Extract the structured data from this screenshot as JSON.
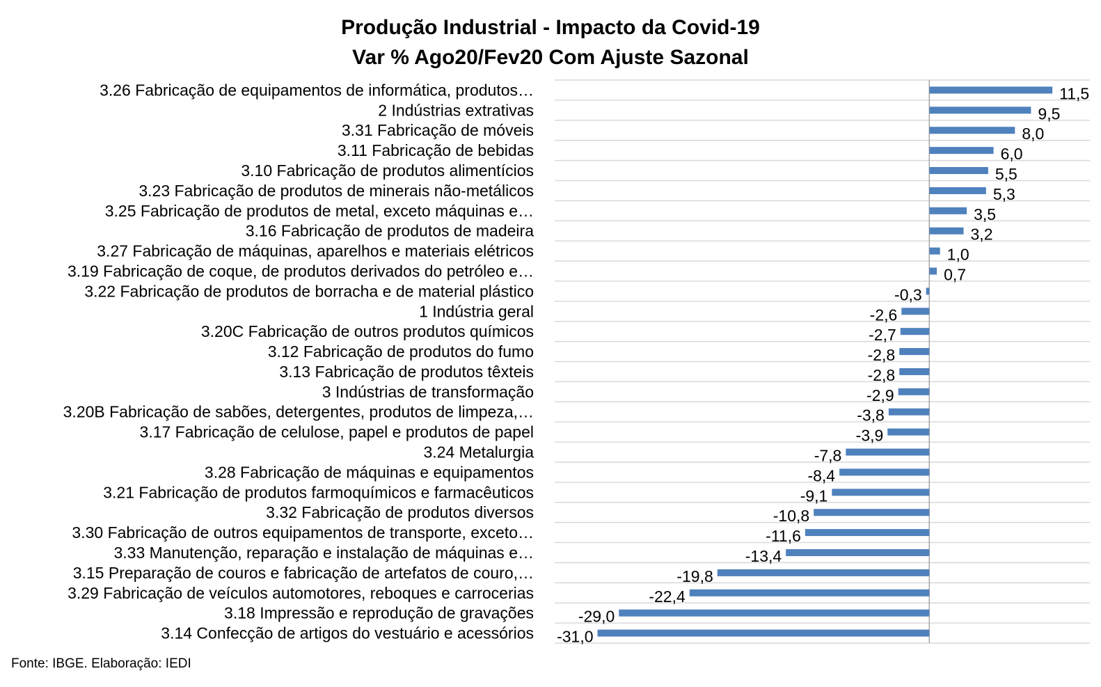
{
  "chart_data": {
    "type": "bar",
    "orientation": "horizontal",
    "title": "Produção Industrial - Impacto da Covid-19",
    "subtitle": "Var % Ago20/Fev20 Com Ajuste Sazonal",
    "categories": [
      "3.26 Fabricação de equipamentos de informática, produtos…",
      "2 Indústrias extrativas",
      "3.31 Fabricação de móveis",
      "3.11 Fabricação de bebidas",
      "3.10 Fabricação de produtos alimentícios",
      "3.23 Fabricação de produtos de minerais não-metálicos",
      "3.25 Fabricação de produtos de metal, exceto máquinas e…",
      "3.16 Fabricação de produtos de madeira",
      "3.27 Fabricação de máquinas, aparelhos e materiais elétricos",
      "3.19 Fabricação de coque, de produtos derivados do petróleo e…",
      "3.22 Fabricação de produtos de borracha e de material plástico",
      "1 Indústria geral",
      "3.20C Fabricação de outros produtos químicos",
      "3.12 Fabricação de produtos do fumo",
      "3.13 Fabricação de produtos têxteis",
      "3 Indústrias de transformação",
      "3.20B Fabricação de sabões, detergentes, produtos de limpeza,…",
      "3.17 Fabricação de celulose, papel e produtos de papel",
      "3.24 Metalurgia",
      "3.28 Fabricação de máquinas e equipamentos",
      "3.21 Fabricação de produtos farmoquímicos e farmacêuticos",
      "3.32 Fabricação de produtos diversos",
      "3.30 Fabricação de outros equipamentos de transporte, exceto…",
      "3.33 Manutenção, reparação e instalação de máquinas e…",
      "3.15 Preparação de couros e fabricação de artefatos de couro,…",
      "3.29 Fabricação de veículos automotores, reboques e carrocerias",
      "3.18 Impressão e reprodução de gravações",
      "3.14 Confecção de artigos do vestuário e acessórios"
    ],
    "values": [
      11.5,
      9.5,
      8.0,
      6.0,
      5.5,
      5.3,
      3.5,
      3.2,
      1.0,
      0.7,
      -0.3,
      -2.6,
      -2.7,
      -2.8,
      -2.8,
      -2.9,
      -3.8,
      -3.9,
      -7.8,
      -8.4,
      -9.1,
      -10.8,
      -11.6,
      -13.4,
      -19.8,
      -22.4,
      -29.0,
      -31.0
    ],
    "data_labels": [
      "11,5",
      "9,5",
      "8,0",
      "6,0",
      "5,5",
      "5,3",
      "3,5",
      "3,2",
      "1,0",
      "0,7",
      "-0,3",
      "-2,6",
      "-2,7",
      "-2,8",
      "-2,8",
      "-2,9",
      "-3,8",
      "-3,9",
      "-7,8",
      "-8,4",
      "-9,1",
      "-10,8",
      "-11,6",
      "-13,4",
      "-19,8",
      "-22,4",
      "-29,0",
      "-31,0"
    ],
    "xlim": [
      -35,
      15
    ],
    "grid": true,
    "legend": "none",
    "bar_color": "#4F81BD",
    "grid_color": "#D9D9D9",
    "axis_color": "#A6A6A6"
  },
  "source": "Fonte: IBGE. Elaboração: IEDI"
}
